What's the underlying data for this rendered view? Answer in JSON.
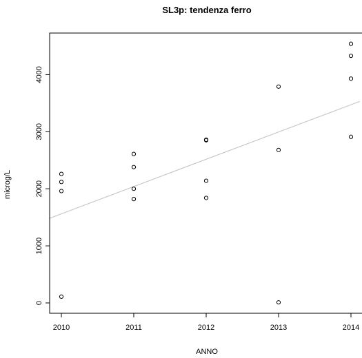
{
  "chart_data": {
    "type": "scatter",
    "title": "SL3p: tendenza ferro",
    "xlabel": "ANNO",
    "ylabel": "microg/L",
    "xlim": [
      1990.96,
      2014.12
    ],
    "ylim": [
      -160,
      4700
    ],
    "xticks": [
      2010,
      2011,
      2012,
      2013,
      2014
    ],
    "yticks": [
      0,
      1000,
      2000,
      3000,
      4000
    ],
    "grid": false,
    "legend": "none",
    "series": [
      {
        "points": [
          {
            "x": 2010,
            "y": 2260
          },
          {
            "x": 2010,
            "y": 2120
          },
          {
            "x": 2010,
            "y": 1960
          },
          {
            "x": 2010,
            "y": 110
          },
          {
            "x": 2011,
            "y": 2610
          },
          {
            "x": 2011,
            "y": 2380
          },
          {
            "x": 2011,
            "y": 2000
          },
          {
            "x": 2011,
            "y": 1820
          },
          {
            "x": 2012,
            "y": 2860
          },
          {
            "x": 2012,
            "y": 2850
          },
          {
            "x": 2012,
            "y": 2140
          },
          {
            "x": 2012,
            "y": 1840
          },
          {
            "x": 2013,
            "y": 3790
          },
          {
            "x": 2013,
            "y": 2680
          },
          {
            "x": 2013,
            "y": 10
          },
          {
            "x": 2014,
            "y": 4540
          },
          {
            "x": 2014,
            "y": 4330
          },
          {
            "x": 2014,
            "y": 3930
          },
          {
            "x": 2014,
            "y": 2910
          }
        ]
      }
    ],
    "trendline": {
      "x": [
        2009.83,
        2014.12
      ],
      "y": [
        1480,
        3530
      ],
      "color": "#c8c8c8"
    },
    "point_color": "#000000"
  }
}
